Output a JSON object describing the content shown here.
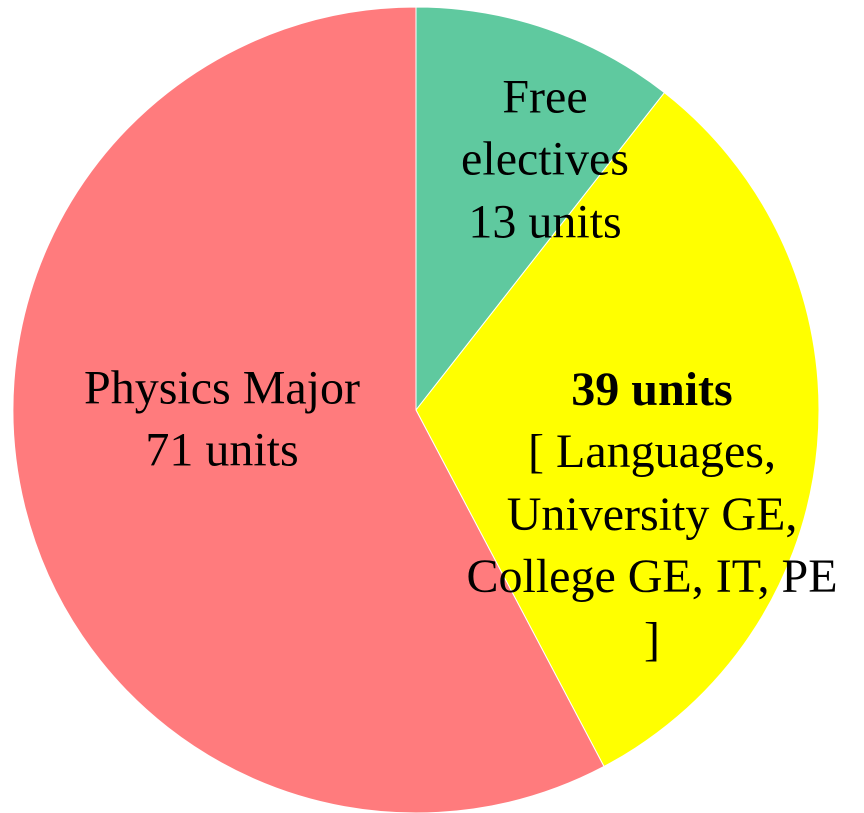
{
  "chart_data": {
    "type": "pie",
    "categories": [
      "Free electives",
      "[ Languages, University GE, College GE, IT, PE ]",
      "Physics Major"
    ],
    "values": [
      13,
      39,
      71
    ],
    "value_labels": [
      "13 units",
      "39 units",
      "71 units"
    ],
    "colors": [
      "#5fc99f",
      "#ffff00",
      "#ff7b7d"
    ]
  }
}
